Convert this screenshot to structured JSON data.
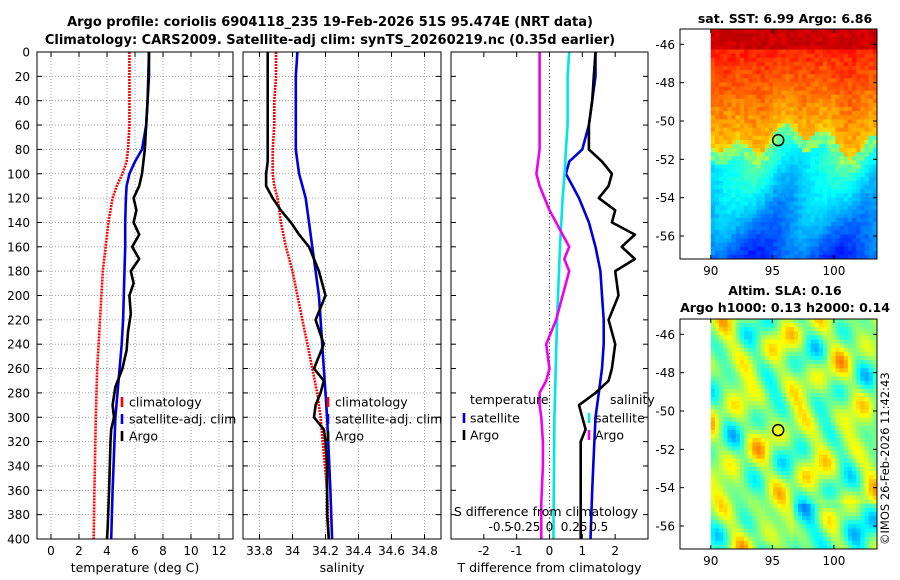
{
  "header": {
    "title_line1": "Argo profile: coriolis 6904118_235 19-Feb-2026 51S 95.474E (NRT data)",
    "title_line2": "Climatology: CARS2009. Satellite-adj clim: synTS_20260219.nc (0.35d earlier)"
  },
  "copyright": "©IMOS 26-Feb-2026 11:42:43",
  "colors": {
    "red": "#ff0000",
    "blue": "#0000dd",
    "black": "#000000",
    "cyan": "#00e5e5",
    "magenta": "#ee00ee"
  },
  "chart_data": [
    {
      "type": "line",
      "name": "temperature-profile",
      "xlabel": "temperature (deg C)",
      "ylabel": "",
      "xlim": [
        -1,
        13
      ],
      "ylim": [
        400,
        0
      ],
      "xticks": [
        "0",
        "2",
        "4",
        "6",
        "8",
        "10",
        "12"
      ],
      "xtick_values": [
        0,
        2,
        4,
        6,
        8,
        10,
        12
      ],
      "yticks": [
        "0",
        "20",
        "40",
        "60",
        "80",
        "100",
        "120",
        "140",
        "160",
        "180",
        "200",
        "220",
        "240",
        "260",
        "280",
        "300",
        "320",
        "340",
        "360",
        "380",
        "400"
      ],
      "ytick_values": [
        0,
        20,
        40,
        60,
        80,
        100,
        120,
        140,
        160,
        180,
        200,
        220,
        240,
        260,
        280,
        300,
        320,
        340,
        360,
        380,
        400
      ],
      "grid": true,
      "legend": {
        "location": "bottom-right",
        "entries": [
          "climatology",
          "satellite-adj. clim",
          "Argo"
        ]
      },
      "series": [
        {
          "name": "climatology",
          "color": "red",
          "style": "dashed",
          "x": [
            5.6,
            5.6,
            5.6,
            5.6,
            5.5,
            5.4,
            5.1,
            4.7,
            4.4,
            4.1,
            3.9,
            3.7,
            3.6,
            3.5,
            3.4,
            3.3,
            3.25,
            3.2,
            3.15,
            3.1,
            3.05
          ],
          "y": [
            0,
            20,
            40,
            60,
            80,
            90,
            100,
            110,
            120,
            140,
            160,
            180,
            200,
            220,
            240,
            260,
            280,
            300,
            330,
            360,
            400
          ]
        },
        {
          "name": "satellite-adj. clim",
          "color": "blue",
          "style": "solid",
          "x": [
            7.0,
            7.0,
            6.9,
            6.8,
            6.5,
            6.0,
            5.6,
            5.4,
            5.35,
            5.3,
            5.3,
            5.25,
            5.2,
            5.15,
            5.05,
            4.9,
            4.75,
            4.6,
            4.5,
            4.4,
            4.3
          ],
          "y": [
            0,
            20,
            40,
            60,
            80,
            90,
            100,
            110,
            120,
            140,
            160,
            180,
            200,
            220,
            240,
            260,
            280,
            300,
            330,
            360,
            400
          ]
        },
        {
          "name": "Argo",
          "color": "black",
          "style": "solid",
          "x": [
            7.0,
            6.95,
            6.9,
            6.8,
            6.7,
            6.6,
            6.5,
            6.3,
            5.9,
            6.1,
            5.9,
            6.3,
            5.8,
            6.3,
            5.7,
            5.9,
            5.6,
            5.7,
            5.5,
            5.4,
            5.1,
            4.6,
            4.4,
            4.5,
            4.3,
            4.25,
            4.2,
            4.15,
            4.1,
            4.05,
            4.0
          ],
          "y": [
            0,
            20,
            40,
            60,
            80,
            90,
            100,
            110,
            120,
            130,
            140,
            150,
            160,
            170,
            180,
            190,
            200,
            215,
            230,
            245,
            260,
            275,
            290,
            300,
            310,
            320,
            340,
            360,
            375,
            390,
            400
          ]
        }
      ]
    },
    {
      "type": "line",
      "name": "salinity-profile",
      "xlabel": "salinity",
      "ylabel": "",
      "xlim": [
        33.7,
        34.9
      ],
      "ylim": [
        400,
        0
      ],
      "xticks": [
        "33.8",
        "34",
        "34.2",
        "34.4",
        "34.6",
        "34.8"
      ],
      "xtick_values": [
        33.8,
        34.0,
        34.2,
        34.4,
        34.6,
        34.8
      ],
      "grid": true,
      "legend": {
        "location": "bottom-right",
        "entries": [
          "climatology",
          "satellite-adj. clim",
          "Argo"
        ]
      },
      "series": [
        {
          "name": "climatology",
          "color": "red",
          "style": "dashed",
          "x": [
            33.9,
            33.9,
            33.89,
            33.89,
            33.88,
            33.88,
            33.88,
            33.89,
            33.91,
            33.93,
            33.96,
            34.0,
            34.03,
            34.06,
            34.09,
            34.12,
            34.15,
            34.17,
            34.19,
            34.21,
            34.22
          ],
          "y": [
            0,
            20,
            40,
            60,
            80,
            90,
            100,
            110,
            120,
            140,
            160,
            180,
            200,
            220,
            240,
            260,
            280,
            300,
            330,
            360,
            400
          ]
        },
        {
          "name": "satellite-adj. clim",
          "color": "blue",
          "style": "solid",
          "x": [
            34.03,
            34.02,
            34.02,
            34.02,
            34.02,
            34.03,
            34.04,
            34.06,
            34.08,
            34.1,
            34.12,
            34.14,
            34.16,
            34.17,
            34.18,
            34.19,
            34.2,
            34.21,
            34.22,
            34.23,
            34.24
          ],
          "y": [
            0,
            20,
            40,
            60,
            80,
            90,
            100,
            110,
            120,
            140,
            160,
            180,
            200,
            220,
            240,
            260,
            280,
            300,
            330,
            360,
            400
          ]
        },
        {
          "name": "Argo",
          "color": "black",
          "style": "solid",
          "x": [
            33.85,
            33.85,
            33.85,
            33.85,
            33.85,
            33.85,
            33.84,
            33.84,
            33.88,
            33.93,
            33.99,
            34.04,
            34.1,
            34.13,
            34.16,
            34.2,
            34.14,
            34.19,
            34.13,
            34.19,
            34.17,
            34.14,
            34.13,
            34.19,
            34.2,
            34.21,
            34.21,
            34.21,
            34.22
          ],
          "y": [
            0,
            20,
            40,
            60,
            80,
            90,
            100,
            110,
            120,
            130,
            140,
            150,
            160,
            170,
            180,
            200,
            220,
            240,
            260,
            270,
            280,
            290,
            300,
            310,
            320,
            340,
            360,
            380,
            400
          ]
        }
      ]
    },
    {
      "type": "line",
      "name": "difference-profile",
      "xlabel": "T difference from climatology",
      "top_label": "S difference from climatology",
      "xlim": [
        -3,
        3
      ],
      "ylim": [
        400,
        0
      ],
      "xticks": [
        "-2",
        "-1",
        "0",
        "1",
        "2"
      ],
      "xtick_values": [
        -2,
        -1,
        0,
        1,
        2
      ],
      "s_ticks": [
        "-0.5",
        "-0.25",
        "0",
        "0.25",
        "0.5"
      ],
      "s_tick_values_on_T_axis": [
        -1.5,
        -0.75,
        0,
        0.75,
        1.5
      ],
      "zero_line": "dotted",
      "legend": {
        "temperature": {
          "title": "temperature",
          "entries": [
            "satellite",
            "Argo"
          ],
          "location": "bottom-left"
        },
        "salinity": {
          "title": "salinity",
          "entries": [
            "satellite",
            "Argo"
          ],
          "location": "bottom-right"
        }
      },
      "series": [
        {
          "name": "T satellite",
          "color": "blue",
          "style": "solid",
          "x": [
            1.4,
            1.4,
            1.3,
            1.2,
            1.0,
            0.6,
            0.5,
            0.7,
            0.9,
            1.2,
            1.4,
            1.55,
            1.6,
            1.65,
            1.65,
            1.6,
            1.5,
            1.4,
            1.35,
            1.3,
            1.25
          ],
          "y": [
            0,
            20,
            40,
            60,
            80,
            90,
            100,
            110,
            120,
            140,
            160,
            180,
            200,
            220,
            240,
            260,
            280,
            300,
            330,
            360,
            400
          ]
        },
        {
          "name": "T Argo",
          "color": "black",
          "style": "solid",
          "x": [
            1.4,
            1.35,
            1.3,
            1.2,
            1.2,
            1.6,
            1.9,
            1.8,
            1.5,
            2.0,
            1.9,
            2.6,
            2.2,
            2.6,
            2.0,
            2.1,
            1.8,
            2.0,
            1.9,
            1.8,
            1.4,
            0.9,
            1.0,
            1.1,
            0.95,
            0.95,
            0.95,
            0.95,
            0.95
          ],
          "y": [
            0,
            20,
            40,
            60,
            80,
            90,
            100,
            110,
            120,
            130,
            140,
            150,
            160,
            170,
            180,
            200,
            220,
            240,
            260,
            270,
            280,
            290,
            300,
            310,
            320,
            340,
            360,
            380,
            400
          ]
        },
        {
          "name": "S satellite",
          "color": "cyan",
          "style": "solid",
          "x": [
            0.6,
            0.55,
            0.55,
            0.55,
            0.5,
            0.48,
            0.46,
            0.43,
            0.4,
            0.36,
            0.32,
            0.29,
            0.26,
            0.23,
            0.21,
            0.19,
            0.17,
            0.15,
            0.14,
            0.13,
            0.12
          ],
          "y": [
            0,
            20,
            40,
            60,
            80,
            90,
            100,
            110,
            120,
            140,
            160,
            180,
            200,
            220,
            240,
            260,
            280,
            300,
            330,
            360,
            400
          ]
        },
        {
          "name": "S Argo",
          "color": "magenta",
          "style": "solid",
          "x": [
            -0.3,
            -0.3,
            -0.3,
            -0.3,
            -0.3,
            -0.4,
            -0.3,
            -0.15,
            0.0,
            0.2,
            0.4,
            0.6,
            0.45,
            0.6,
            0.4,
            0.2,
            -0.1,
            0.0,
            -0.1,
            -0.3,
            -0.3,
            -0.25,
            -0.2,
            -0.2,
            -0.25,
            -0.25
          ],
          "y": [
            0,
            20,
            40,
            60,
            80,
            100,
            110,
            120,
            130,
            140,
            150,
            160,
            170,
            180,
            200,
            220,
            240,
            260,
            270,
            280,
            290,
            300,
            320,
            340,
            370,
            400
          ]
        }
      ]
    },
    {
      "type": "heatmap",
      "name": "sst-map",
      "title": "sat. SST: 6.99 Argo: 6.86",
      "xticks": [
        "90",
        "95",
        "100"
      ],
      "xtick_values": [
        90,
        95,
        100
      ],
      "yticks": [
        "-46",
        "-48",
        "-50",
        "-52",
        "-54",
        "-56"
      ],
      "ytick_values": [
        -46,
        -48,
        -50,
        -52,
        -54,
        -56
      ],
      "xlim": [
        87.5,
        103.5
      ],
      "ylim": [
        -57.2,
        -45.2
      ],
      "data_extent": {
        "lon": [
          90,
          103.5
        ],
        "lat": [
          -57.2,
          -45.2
        ]
      },
      "marker": {
        "lon": 95.474,
        "lat": -51
      },
      "colormap": "jet"
    },
    {
      "type": "heatmap",
      "name": "sla-map",
      "title_line1": "Altim. SLA: 0.16",
      "title_line2": "Argo h1000: 0.13 h2000: 0.14",
      "xticks": [
        "90",
        "95",
        "100"
      ],
      "xtick_values": [
        90,
        95,
        100
      ],
      "yticks": [
        "-46",
        "-48",
        "-50",
        "-52",
        "-54",
        "-56"
      ],
      "ytick_values": [
        -46,
        -48,
        -50,
        -52,
        -54,
        -56
      ],
      "xlim": [
        87.5,
        103.5
      ],
      "ylim": [
        -57.2,
        -45.2
      ],
      "data_extent": {
        "lon": [
          90,
          103.5
        ],
        "lat": [
          -57.2,
          -45.2
        ]
      },
      "marker": {
        "lon": 95.474,
        "lat": -51
      },
      "colormap": "jet"
    }
  ]
}
